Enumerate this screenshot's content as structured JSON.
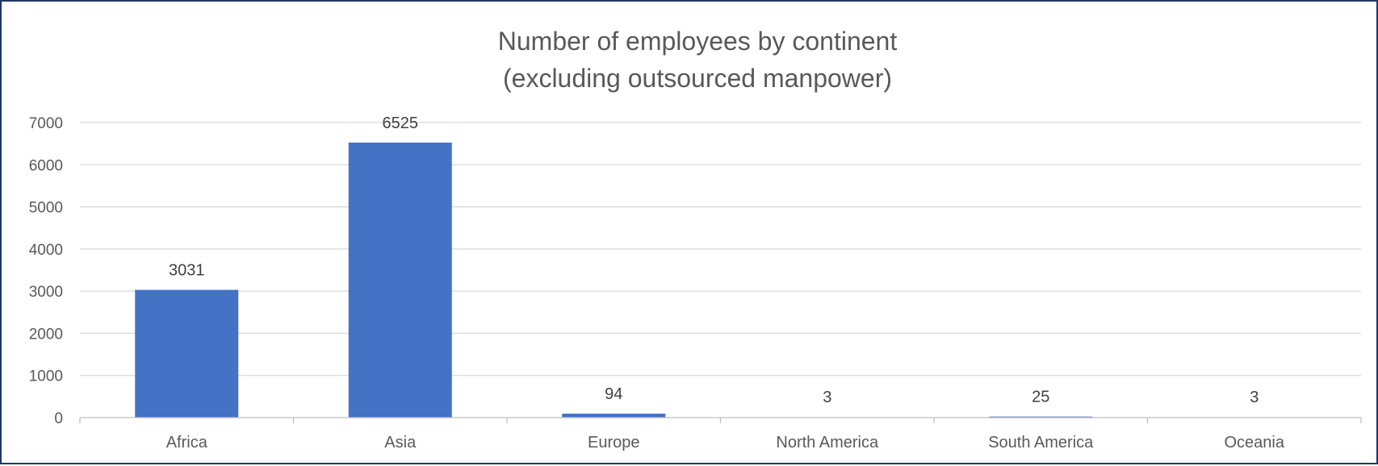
{
  "chart_data": {
    "type": "bar",
    "title_lines": [
      "Number of employees by continent",
      "(excluding outsourced manpower)"
    ],
    "categories": [
      "Africa",
      "Asia",
      "Europe",
      "North America",
      "South America",
      "Oceania"
    ],
    "values": [
      3031,
      6525,
      94,
      3,
      25,
      3
    ],
    "data_labels": [
      "3031",
      "6525",
      "94",
      "3",
      "25",
      "3"
    ],
    "yticks": [
      0,
      1000,
      2000,
      3000,
      4000,
      5000,
      6000,
      7000
    ],
    "ylim": [
      0,
      7000
    ],
    "grid": true,
    "legend": "none",
    "bar_color": "#4472c4"
  }
}
